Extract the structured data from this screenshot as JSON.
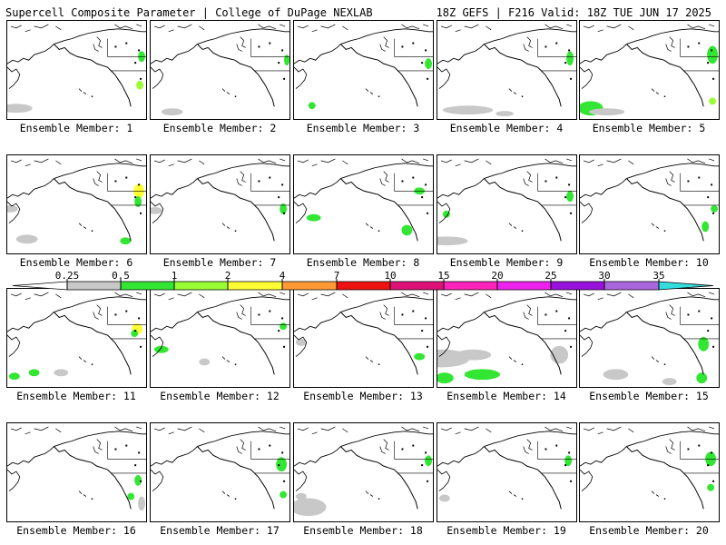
{
  "header": {
    "title": "Supercell Composite Parameter | College of DuPage NEXLAB",
    "run_info": "18Z GEFS | F216 Valid: 18Z TUE JUN 17 2025"
  },
  "colorbar": {
    "tick_labels": [
      "0.25",
      "0.5",
      "1",
      "2",
      "4",
      "7",
      "10",
      "15",
      "20",
      "25",
      "30",
      "35"
    ],
    "colors": [
      "#c8c8c8",
      "#33e633",
      "#99ff33",
      "#ffff33",
      "#ff9933",
      "#ee1111",
      "#dd1177",
      "#ff22bb",
      "#ee22ee",
      "#9911dd",
      "#aa66dd",
      "#33dddd"
    ]
  },
  "panels": [
    {
      "label": "Ensemble Member: 1",
      "areas": []
    },
    {
      "label": "Ensemble Member: 2",
      "areas": []
    },
    {
      "label": "Ensemble Member: 3",
      "areas": []
    },
    {
      "label": "Ensemble Member: 4",
      "areas": []
    },
    {
      "label": "Ensemble Member: 5",
      "areas": []
    },
    {
      "label": "Ensemble Member: 6",
      "areas": []
    },
    {
      "label": "Ensemble Member: 7",
      "areas": []
    },
    {
      "label": "Ensemble Member: 8",
      "areas": []
    },
    {
      "label": "Ensemble Member: 9",
      "areas": []
    },
    {
      "label": "Ensemble Member: 10",
      "areas": []
    },
    {
      "label": "Ensemble Member: 11",
      "areas": []
    },
    {
      "label": "Ensemble Member: 12",
      "areas": []
    },
    {
      "label": "Ensemble Member: 13",
      "areas": []
    },
    {
      "label": "Ensemble Member: 14",
      "areas": []
    },
    {
      "label": "Ensemble Member: 15",
      "areas": []
    },
    {
      "label": "Ensemble Member: 16",
      "areas": []
    },
    {
      "label": "Ensemble Member: 17",
      "areas": []
    },
    {
      "label": "Ensemble Member: 18",
      "areas": []
    },
    {
      "label": "Ensemble Member: 19",
      "areas": []
    },
    {
      "label": "Ensemble Member: 20",
      "areas": []
    }
  ]
}
